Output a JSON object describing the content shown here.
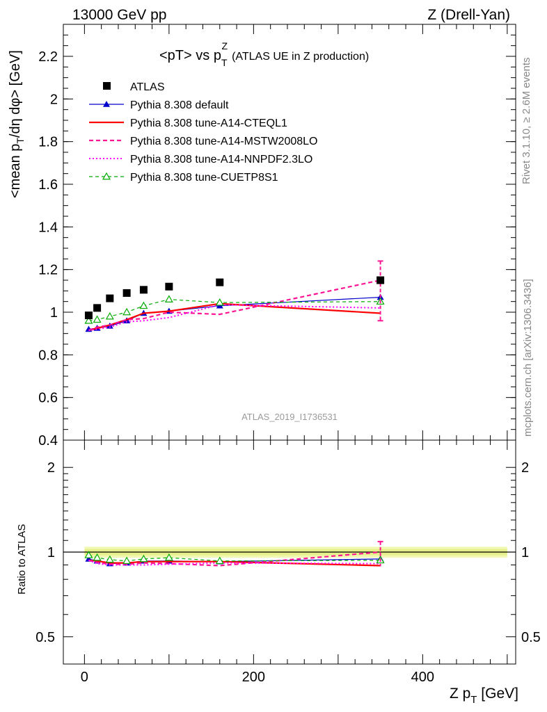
{
  "header": {
    "left": "13000 GeV pp",
    "right": "Z (Drell-Yan)"
  },
  "title": {
    "prefix": "<pT> vs p",
    "sup": "Z",
    "sub": "T",
    "suffix": "(ATLAS UE in Z production)"
  },
  "side_labels": {
    "rivet": "Rivet 3.1.10, ≥ 2.6M events",
    "mcplots": "mcplots.cern.ch [arXiv:1306.3436]"
  },
  "watermark": "ATLAS_2019_I1736531",
  "axes": {
    "main_ylabel": {
      "a": "<mean p",
      "a_sub": "T",
      "b": "/dη dφ> [GeV]"
    },
    "ratio_ylabel": "Ratio to ATLAS",
    "xlabel": {
      "a": "Z p",
      "a_sub": "T",
      "b": " [GeV]"
    }
  },
  "legend": [
    {
      "label": "ATLAS"
    },
    {
      "label": "Pythia 8.308 default"
    },
    {
      "label": "Pythia 8.308 tune-A14-CTEQL1"
    },
    {
      "label": "Pythia 8.308 tune-A14-MSTW2008LO"
    },
    {
      "label": "Pythia 8.308 tune-A14-NNPDF2.3LO"
    },
    {
      "label": "Pythia 8.308 tune-CUETP8S1"
    }
  ],
  "chart_data": {
    "type": "line",
    "x": [
      5,
      15,
      30,
      50,
      70,
      100,
      160,
      350
    ],
    "xlim": [
      -25,
      510
    ],
    "main_ylim": [
      0.4,
      2.35
    ],
    "main_yticks": [
      "0.4",
      "0.6",
      "0.8",
      "1",
      "1.2",
      "1.4",
      "1.6",
      "1.8",
      "2",
      "2.2"
    ],
    "ratio_ylim": [
      0.4,
      2.5
    ],
    "ratio_yticks": [
      "0.5",
      "1",
      "2"
    ],
    "xticks": [
      "0",
      "200",
      "400"
    ],
    "data": {
      "name": "ATLAS",
      "values": [
        0.985,
        1.02,
        1.065,
        1.09,
        1.105,
        1.12,
        1.14,
        1.15
      ],
      "color": "#000000"
    },
    "series": [
      {
        "name": "Pythia 8.308 default",
        "color": "#0000cc",
        "style": "solid",
        "marker": "triangle",
        "values": [
          0.92,
          0.925,
          0.935,
          0.96,
          0.995,
          1.005,
          1.03,
          1.07
        ],
        "ratio": [
          0.945,
          0.93,
          0.91,
          0.915,
          0.93,
          0.93,
          0.925,
          0.945
        ]
      },
      {
        "name": "Pythia 8.308 tune-A14-CTEQL1",
        "color": "#ff0000",
        "style": "solid-thick",
        "marker": "none",
        "values": [
          0.915,
          0.925,
          0.94,
          0.965,
          0.995,
          1.005,
          1.04,
          0.995
        ],
        "ratio": [
          0.935,
          0.93,
          0.915,
          0.915,
          0.925,
          0.925,
          0.925,
          0.895
        ]
      },
      {
        "name": "Pythia 8.308 tune-A14-MSTW2008LO",
        "color": "#ff1493",
        "style": "dashed",
        "marker": "none",
        "values": [
          0.915,
          0.93,
          0.94,
          0.965,
          0.97,
          1.0,
          0.99,
          1.15
        ],
        "ratio": [
          0.935,
          0.92,
          0.905,
          0.905,
          0.915,
          0.91,
          0.895,
          1.0
        ]
      },
      {
        "name": "Pythia 8.308 tune-A14-NNPDF2.3LO",
        "color": "#ff00ff",
        "style": "dotted",
        "marker": "none",
        "values": [
          0.915,
          0.92,
          0.93,
          0.955,
          0.96,
          0.975,
          1.035,
          1.02
        ],
        "ratio": [
          0.935,
          0.91,
          0.9,
          0.9,
          0.9,
          0.905,
          0.915,
          0.91
        ]
      },
      {
        "name": "Pythia 8.308 tune-CUETP8S1",
        "color": "#00aa00",
        "style": "dashed-thin",
        "marker": "open-triangle",
        "values": [
          0.96,
          0.965,
          0.98,
          1.0,
          1.03,
          1.06,
          1.045,
          1.05
        ],
        "ratio": [
          0.975,
          0.955,
          0.94,
          0.93,
          0.945,
          0.955,
          0.93,
          0.935
        ]
      }
    ]
  }
}
